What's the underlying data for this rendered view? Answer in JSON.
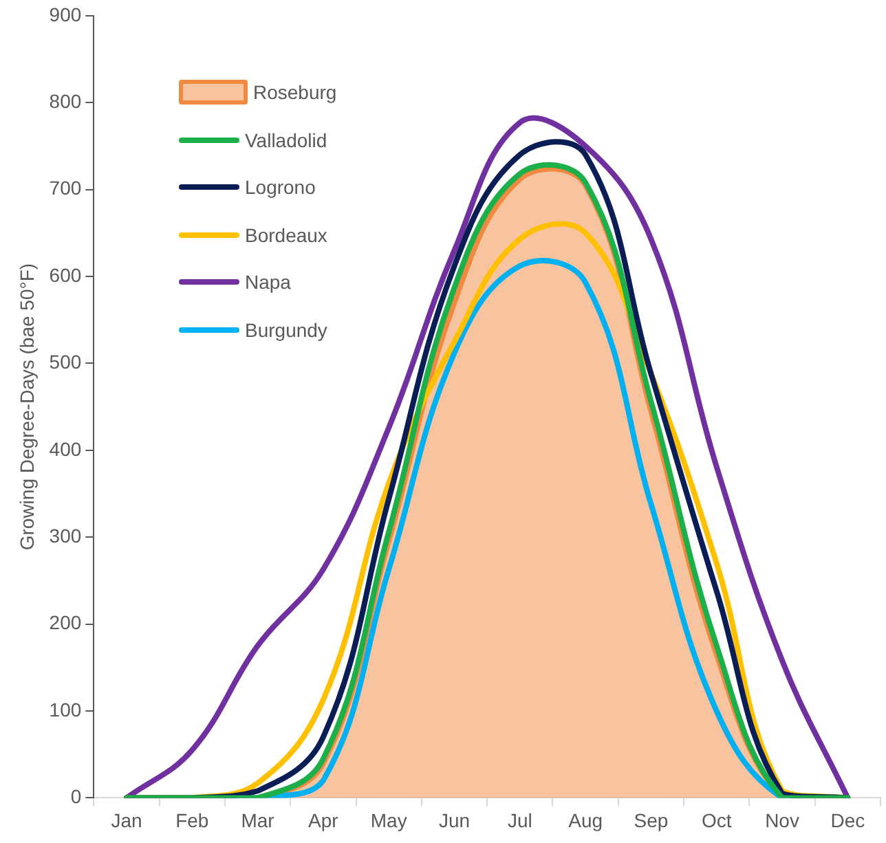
{
  "chart_data": {
    "type": "line",
    "ylabel": "Growing Degree-Days (bae 50°F)",
    "categories": [
      "Jan",
      "Feb",
      "Mar",
      "Apr",
      "May",
      "Jun",
      "Jul",
      "Aug",
      "Sep",
      "Oct",
      "Nov",
      "Dec"
    ],
    "series": [
      {
        "name": "Roseburg",
        "type": "area",
        "color": "#f08a40",
        "values": [
          0,
          0,
          0,
          40,
          296,
          570,
          712,
          705,
          445,
          165,
          0,
          0
        ]
      },
      {
        "name": "Valladolid",
        "color": "#1db04a",
        "values": [
          0,
          0,
          0,
          45,
          306,
          587,
          718,
          708,
          456,
          175,
          0,
          0
        ]
      },
      {
        "name": "Logrono",
        "color": "#0b1d55",
        "values": [
          0,
          0,
          8,
          70,
          344,
          612,
          740,
          740,
          488,
          238,
          5,
          0
        ]
      },
      {
        "name": "Bordeaux",
        "color": "#ffc000",
        "values": [
          0,
          0,
          17,
          113,
          362,
          525,
          643,
          650,
          488,
          270,
          8,
          0
        ]
      },
      {
        "name": "Napa",
        "color": "#7030a0",
        "values": [
          0,
          55,
          175,
          263,
          426,
          630,
          777,
          750,
          643,
          381,
          158,
          0
        ]
      },
      {
        "name": "Burgundy",
        "color": "#00b0f0",
        "values": [
          0,
          0,
          0,
          20,
          263,
          512,
          612,
          593,
          338,
          100,
          0,
          0
        ]
      }
    ],
    "ylim": [
      0,
      900
    ],
    "yticks": [
      0,
      100,
      200,
      300,
      400,
      500,
      600,
      700,
      800,
      900
    ],
    "grid": false,
    "legend": "top left",
    "marker": "none"
  }
}
